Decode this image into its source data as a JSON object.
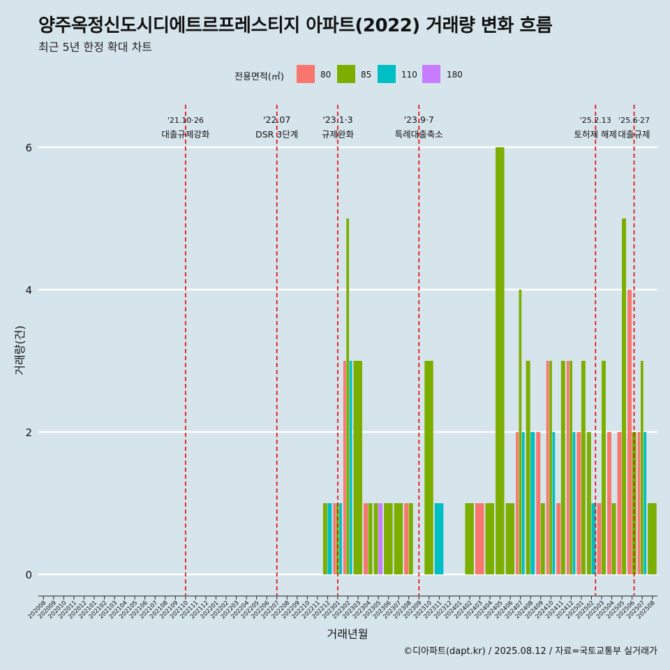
{
  "header": {
    "title": "양주옥정신도시디에트르프레스티지 아파트(2022) 거래량 변화 흐름",
    "subtitle": "최근 5년 한정 확대 차트"
  },
  "legend": {
    "title": "전용면적(㎡)",
    "items": [
      {
        "label": "80",
        "color": "#f8766d"
      },
      {
        "label": "85",
        "color": "#7cae00"
      },
      {
        "label": "110",
        "color": "#00bfc4"
      },
      {
        "label": "180",
        "color": "#c77cff"
      }
    ]
  },
  "caption": "©디아파트(dapt.kr) / 2025.08.12 / 자료=국토교통부 실거래가",
  "chart_data": {
    "type": "bar",
    "xlabel": "거래년월",
    "ylabel": "거래량(건)",
    "ylim": [
      -0.5,
      6.6
    ],
    "yticks": [
      0,
      2,
      4,
      6
    ],
    "grid": true,
    "categories": [
      "202008",
      "202009",
      "202010",
      "202011",
      "202012",
      "202101",
      "202102",
      "202103",
      "202104",
      "202105",
      "202106",
      "202107",
      "202108",
      "202109",
      "202110",
      "202111",
      "202112",
      "202201",
      "202202",
      "202203",
      "202204",
      "202205",
      "202206",
      "202207",
      "202208",
      "202209",
      "202210",
      "202211",
      "202212",
      "202301",
      "202302",
      "202303",
      "202304",
      "202305",
      "202306",
      "202307",
      "202308",
      "202309",
      "202310",
      "202311",
      "202312",
      "202401",
      "202402",
      "202403",
      "202404",
      "202405",
      "202406",
      "202407",
      "202408",
      "202409",
      "202410",
      "202411",
      "202412",
      "202501",
      "202502",
      "202503",
      "202504",
      "202505",
      "202506",
      "202507",
      "202508"
    ],
    "bars": [
      {
        "month": "202212",
        "values": {
          "85": 1,
          "110": 1
        }
      },
      {
        "month": "202301",
        "values": {
          "80": 1,
          "85": 1,
          "110": 1
        }
      },
      {
        "month": "202302",
        "values": {
          "80": 3,
          "85": 5,
          "110": 3
        }
      },
      {
        "month": "202303",
        "values": {
          "85": 3
        }
      },
      {
        "month": "202304",
        "values": {
          "80": 1,
          "85": 1
        }
      },
      {
        "month": "202305",
        "values": {
          "85": 1,
          "180": 1
        }
      },
      {
        "month": "202306",
        "values": {
          "85": 1
        }
      },
      {
        "month": "202307",
        "values": {
          "85": 1
        }
      },
      {
        "month": "202308",
        "values": {
          "80": 1,
          "85": 1
        }
      },
      {
        "month": "202310",
        "values": {
          "85": 3
        }
      },
      {
        "month": "202311",
        "values": {
          "110": 1
        }
      },
      {
        "month": "202402",
        "values": {
          "85": 1
        }
      },
      {
        "month": "202403",
        "values": {
          "80": 1
        }
      },
      {
        "month": "202404",
        "values": {
          "85": 1
        }
      },
      {
        "month": "202405",
        "values": {
          "85": 6
        }
      },
      {
        "month": "202406",
        "values": {
          "85": 1
        }
      },
      {
        "month": "202407",
        "values": {
          "80": 2,
          "85": 4,
          "110": 2
        }
      },
      {
        "month": "202408",
        "values": {
          "85": 3,
          "110": 2
        }
      },
      {
        "month": "202409",
        "values": {
          "80": 2,
          "85": 1
        }
      },
      {
        "month": "202410",
        "values": {
          "80": 3,
          "85": 3,
          "110": 2
        }
      },
      {
        "month": "202411",
        "values": {
          "80": 1,
          "85": 3
        }
      },
      {
        "month": "202412",
        "values": {
          "80": 3,
          "85": 3,
          "110": 2
        }
      },
      {
        "month": "202501",
        "values": {
          "80": 2,
          "85": 3
        }
      },
      {
        "month": "202502",
        "values": {
          "85": 2,
          "110": 1
        }
      },
      {
        "month": "202503",
        "values": {
          "80": 1,
          "85": 3
        }
      },
      {
        "month": "202504",
        "values": {
          "80": 2,
          "85": 1
        }
      },
      {
        "month": "202505",
        "values": {
          "80": 2,
          "85": 5
        }
      },
      {
        "month": "202506",
        "values": {
          "80": 4,
          "85": 2
        }
      },
      {
        "month": "202507",
        "values": {
          "80": 2,
          "85": 3,
          "110": 2
        }
      },
      {
        "month": "202508",
        "values": {
          "85": 1
        }
      }
    ],
    "annotations": [
      {
        "x": 14.0,
        "date": "'21.10·26",
        "text": "대출규제강화"
      },
      {
        "x": 23.0,
        "date": "'22.07",
        "text": "DSR 3단계"
      },
      {
        "x": 29.0,
        "date": "'23.1·3",
        "text": "규제완화"
      },
      {
        "x": 37.0,
        "date": "'23.9·7",
        "text": "특례대출축소"
      },
      {
        "x": 54.4,
        "date": "'25.2.13",
        "text": "토허제 해제"
      },
      {
        "x": 58.2,
        "date": "'25.6·27",
        "text": "대출규제"
      }
    ]
  }
}
